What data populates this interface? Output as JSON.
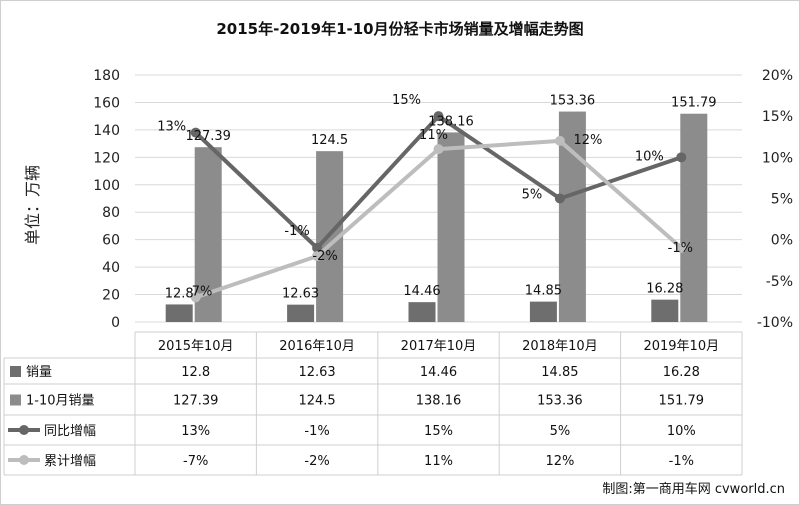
{
  "chart_data": {
    "type": "bar",
    "title": "2015年-2019年1-10月份轻卡市场销量及增幅走势图",
    "ylabel": "单位：万辆",
    "categories": [
      "2015年10月",
      "2016年10月",
      "2017年10月",
      "2018年10月",
      "2019年10月"
    ],
    "ylim": [
      0,
      180
    ],
    "y_ticks": [
      "0",
      "20",
      "40",
      "60",
      "80",
      "100",
      "120",
      "140",
      "160",
      "180"
    ],
    "y2lim": [
      -10,
      20
    ],
    "y2_ticks": [
      "-10%",
      "-5%",
      "0%",
      "5%",
      "10%",
      "15%",
      "20%"
    ],
    "series": [
      {
        "name": "销量",
        "kind": "bar",
        "axis": "left",
        "color": "#6e6e6e",
        "values": [
          12.8,
          12.63,
          14.46,
          14.85,
          16.28
        ],
        "labels": [
          "12.8",
          "12.63",
          "14.46",
          "14.85",
          "16.28"
        ]
      },
      {
        "name": "1-10月销量",
        "kind": "bar",
        "axis": "left",
        "color": "#8c8c8c",
        "values": [
          127.39,
          124.5,
          138.16,
          153.36,
          151.79
        ],
        "labels": [
          "127.39",
          "124.5",
          "138.16",
          "153.36",
          "151.79"
        ]
      },
      {
        "name": "同比增幅",
        "kind": "line",
        "axis": "right",
        "color": "#666666",
        "values": [
          13,
          -1,
          15,
          5,
          10
        ],
        "labels": [
          "13%",
          "-1%",
          "15%",
          "5%",
          "10%"
        ]
      },
      {
        "name": "累计增幅",
        "kind": "line",
        "axis": "right",
        "color": "#bdbdbd",
        "values": [
          -7,
          -2,
          11,
          12,
          -1
        ],
        "labels": [
          "-7%",
          "-2%",
          "11%",
          "12%",
          "-1%"
        ]
      }
    ],
    "grid": true,
    "legend": "table-left",
    "credit": "制图:第一商用车网 cvworld.cn"
  }
}
